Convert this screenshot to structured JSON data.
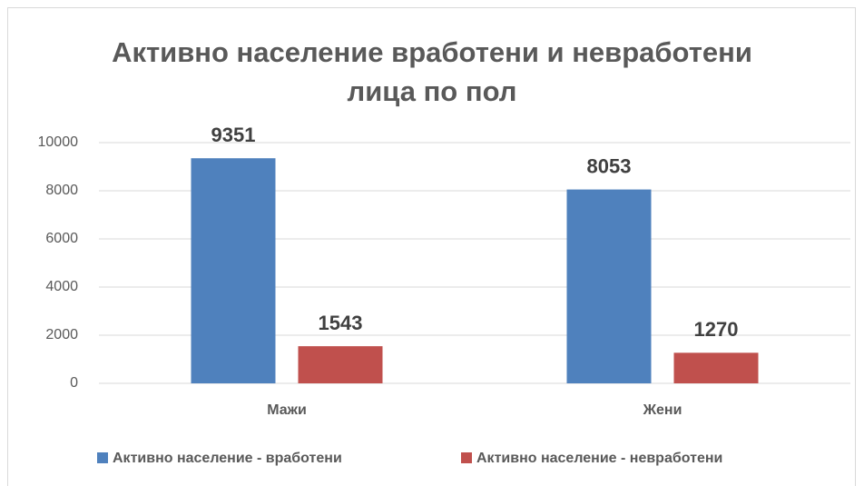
{
  "chart_data": {
    "type": "bar",
    "title": "Активно население вработени и невработени лица по пол",
    "categories": [
      "Мажи",
      "Жени"
    ],
    "series": [
      {
        "name": "Активно население - вработени",
        "color": "#4f81bd",
        "values": [
          9351,
          8053
        ]
      },
      {
        "name": "Активно население - невработени",
        "color": "#c0504d",
        "values": [
          1543,
          1270
        ]
      }
    ],
    "ylim": [
      0,
      10000
    ],
    "yticks": [
      0,
      2000,
      4000,
      6000,
      8000,
      10000
    ],
    "grid": true,
    "legend": "bottom"
  }
}
